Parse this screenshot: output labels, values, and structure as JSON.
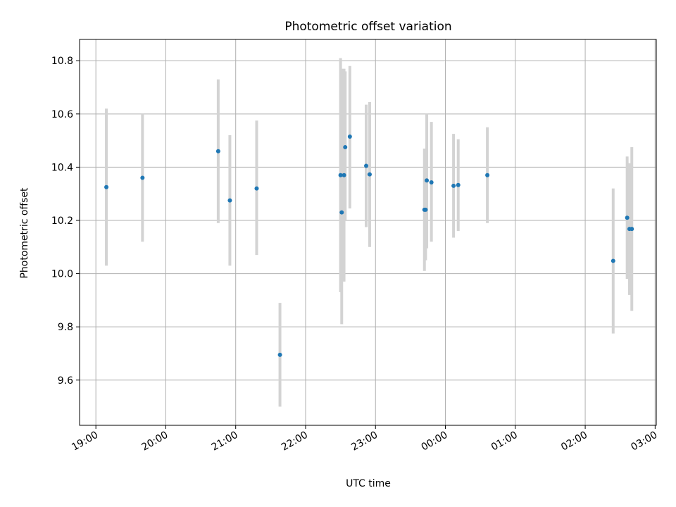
{
  "chart_data": {
    "type": "scatter",
    "title": "Photometric offset variation",
    "xlabel": "UTC time",
    "ylabel": "Photometric offset",
    "grid": true,
    "x_is_time": true,
    "xlim": [
      "18:46",
      "03:01"
    ],
    "ylim": [
      9.43,
      10.88
    ],
    "x_ticks": [
      "19:00",
      "20:00",
      "21:00",
      "22:00",
      "23:00",
      "00:00",
      "01:00",
      "02:00",
      "03:00"
    ],
    "y_ticks": [
      9.6,
      9.8,
      10.0,
      10.2,
      10.4,
      10.6,
      10.8
    ],
    "point_color": "#1f77b4",
    "errorbar_color": "#d3d3d3",
    "points": [
      {
        "x": "19:09",
        "y": 10.325,
        "low": 10.03,
        "high": 10.62
      },
      {
        "x": "19:40",
        "y": 10.36,
        "low": 10.12,
        "high": 10.6
      },
      {
        "x": "20:45",
        "y": 10.46,
        "low": 10.19,
        "high": 10.73
      },
      {
        "x": "20:55",
        "y": 10.275,
        "low": 10.03,
        "high": 10.52
      },
      {
        "x": "21:18",
        "y": 10.32,
        "low": 10.07,
        "high": 10.575
      },
      {
        "x": "21:38",
        "y": 9.695,
        "low": 9.5,
        "high": 9.89
      },
      {
        "x": "22:30",
        "y": 10.37,
        "low": 9.93,
        "high": 10.81
      },
      {
        "x": "22:31",
        "y": 10.23,
        "low": 9.81,
        "high": 10.77
      },
      {
        "x": "22:33",
        "y": 10.37,
        "low": 9.97,
        "high": 10.77
      },
      {
        "x": "22:34",
        "y": 10.475,
        "low": 10.2,
        "high": 10.76
      },
      {
        "x": "22:38",
        "y": 10.515,
        "low": 10.245,
        "high": 10.78
      },
      {
        "x": "22:52",
        "y": 10.405,
        "low": 10.175,
        "high": 10.635
      },
      {
        "x": "22:55",
        "y": 10.373,
        "low": 10.1,
        "high": 10.645
      },
      {
        "x": "23:42",
        "y": 10.24,
        "low": 10.01,
        "high": 10.47
      },
      {
        "x": "23:43",
        "y": 10.24,
        "low": 10.05,
        "high": 10.43
      },
      {
        "x": "23:44",
        "y": 10.35,
        "low": 10.095,
        "high": 10.6
      },
      {
        "x": "23:48",
        "y": 10.343,
        "low": 10.12,
        "high": 10.57
      },
      {
        "x": "00:07",
        "y": 10.33,
        "low": 10.135,
        "high": 10.525
      },
      {
        "x": "00:11",
        "y": 10.333,
        "low": 10.16,
        "high": 10.505
      },
      {
        "x": "00:36",
        "y": 10.37,
        "low": 10.19,
        "high": 10.55
      },
      {
        "x": "02:24",
        "y": 10.048,
        "low": 9.775,
        "high": 10.32
      },
      {
        "x": "02:36",
        "y": 10.21,
        "low": 9.98,
        "high": 10.44
      },
      {
        "x": "02:38",
        "y": 10.168,
        "low": 9.92,
        "high": 10.415
      },
      {
        "x": "02:40",
        "y": 10.168,
        "low": 9.86,
        "high": 10.475
      }
    ]
  }
}
